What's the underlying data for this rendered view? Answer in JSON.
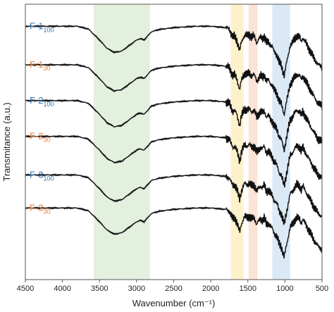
{
  "chart_data": {
    "type": "line",
    "xlabel": "Wavenumber (cm⁻¹)",
    "ylabel": "Transmitance (a.u.)",
    "xlim": [
      4500,
      500
    ],
    "x_reversed": true,
    "xticks": [
      4500,
      4000,
      3500,
      3000,
      2500,
      2000,
      1500,
      1000,
      500
    ],
    "grid": false,
    "legend": "labels at left of each trace, stacked vertically",
    "highlight_bands": [
      {
        "x": [
          3580,
          2820
        ],
        "color": "#e3f0de"
      },
      {
        "x": [
          1730,
          1560
        ],
        "color": "#fdf1cc"
      },
      {
        "x": [
          1490,
          1370
        ],
        "color": "#fbe3d5"
      },
      {
        "x": [
          1170,
          930
        ],
        "color": "#dbe9f7"
      }
    ],
    "series": [
      {
        "name": "F-1",
        "sub": "100",
        "color": "#2f75b5",
        "baseline": 0.92
      },
      {
        "name": "F-1",
        "sub": "30",
        "color": "#ed7d31",
        "baseline": 0.78
      },
      {
        "name": "F-2",
        "sub": "100",
        "color": "#2f75b5",
        "baseline": 0.65
      },
      {
        "name": "F-2",
        "sub": "30",
        "color": "#ed7d31",
        "baseline": 0.52
      },
      {
        "name": "F-3",
        "sub": "100",
        "color": "#2f75b5",
        "baseline": 0.38
      },
      {
        "name": "F-3",
        "sub": "30",
        "color": "#ed7d31",
        "baseline": 0.26
      }
    ],
    "spectrum_shape": [
      [
        4500,
        0.0
      ],
      [
        3800,
        0.0
      ],
      [
        3650,
        -0.01
      ],
      [
        3500,
        -0.05
      ],
      [
        3400,
        -0.08
      ],
      [
        3300,
        -0.095
      ],
      [
        3200,
        -0.09
      ],
      [
        3100,
        -0.07
      ],
      [
        3000,
        -0.05
      ],
      [
        2950,
        -0.045
      ],
      [
        2900,
        -0.05
      ],
      [
        2850,
        -0.035
      ],
      [
        2800,
        -0.02
      ],
      [
        2700,
        -0.012
      ],
      [
        2500,
        -0.005
      ],
      [
        2200,
        0.0
      ],
      [
        2000,
        0.0
      ],
      [
        1800,
        -0.005
      ],
      [
        1750,
        -0.01
      ],
      [
        1720,
        -0.03
      ],
      [
        1700,
        -0.04
      ],
      [
        1680,
        -0.035
      ],
      [
        1650,
        -0.05
      ],
      [
        1630,
        -0.07
      ],
      [
        1610,
        -0.09
      ],
      [
        1590,
        -0.06
      ],
      [
        1560,
        -0.04
      ],
      [
        1540,
        -0.03
      ],
      [
        1510,
        -0.035
      ],
      [
        1480,
        -0.03
      ],
      [
        1450,
        -0.04
      ],
      [
        1420,
        -0.035
      ],
      [
        1400,
        -0.045
      ],
      [
        1380,
        -0.06
      ],
      [
        1360,
        -0.05
      ],
      [
        1330,
        -0.04
      ],
      [
        1300,
        -0.045
      ],
      [
        1280,
        -0.035
      ],
      [
        1250,
        -0.06
      ],
      [
        1220,
        -0.055
      ],
      [
        1200,
        -0.065
      ],
      [
        1170,
        -0.075
      ],
      [
        1150,
        -0.09
      ],
      [
        1120,
        -0.1
      ],
      [
        1100,
        -0.11
      ],
      [
        1080,
        -0.13
      ],
      [
        1050,
        -0.14
      ],
      [
        1030,
        -0.16
      ],
      [
        1010,
        -0.18
      ],
      [
        990,
        -0.15
      ],
      [
        960,
        -0.11
      ],
      [
        930,
        -0.07
      ],
      [
        900,
        -0.06
      ],
      [
        870,
        -0.045
      ],
      [
        840,
        -0.035
      ],
      [
        800,
        -0.04
      ],
      [
        780,
        -0.055
      ],
      [
        760,
        -0.04
      ],
      [
        700,
        -0.07
      ],
      [
        650,
        -0.095
      ],
      [
        600,
        -0.12
      ],
      [
        550,
        -0.14
      ],
      [
        500,
        -0.15
      ]
    ]
  }
}
